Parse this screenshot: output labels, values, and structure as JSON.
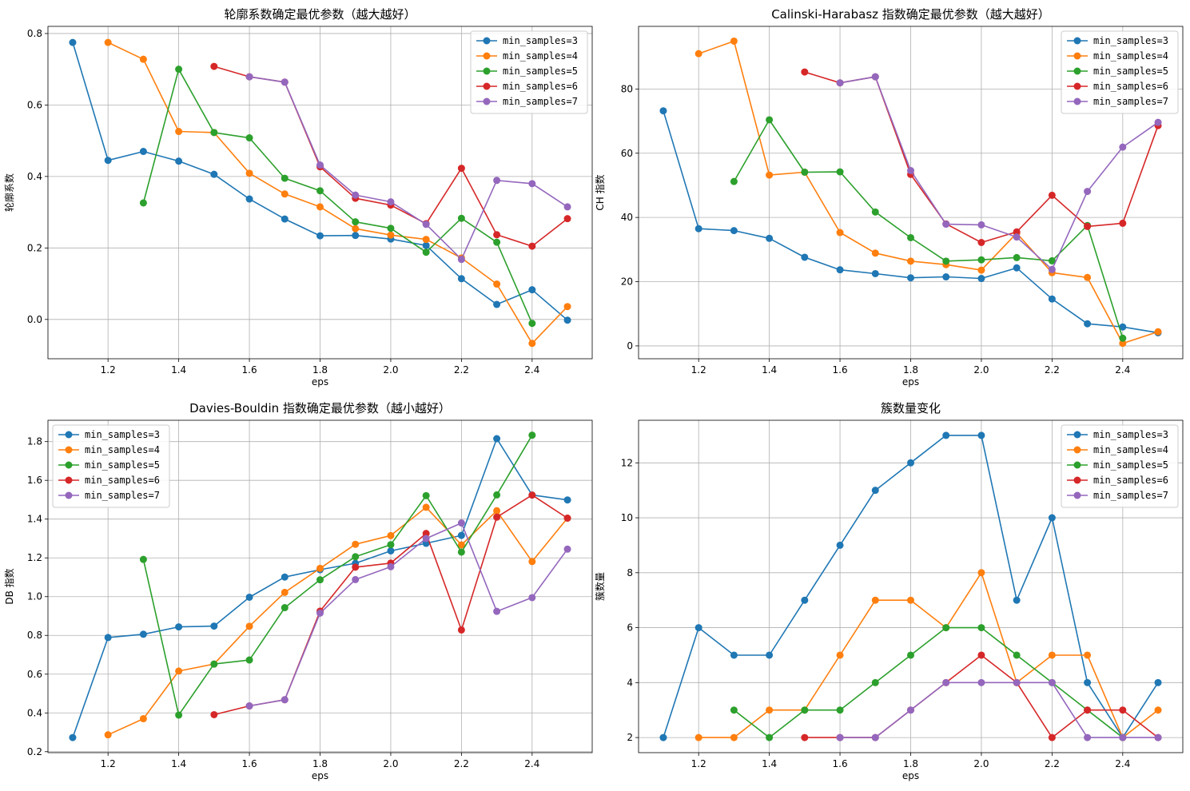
{
  "colors": [
    "#1f77b4",
    "#ff7f0e",
    "#2ca02c",
    "#d62728",
    "#9467bd"
  ],
  "chart_data": [
    {
      "type": "line",
      "title": "轮廓系数确定最优参数（越大越好）",
      "xlabel": "eps",
      "ylabel": "轮廓系数",
      "xlim": [
        1.03,
        2.57
      ],
      "ylim": [
        -0.11,
        0.82
      ],
      "xticks": [
        1.2,
        1.4,
        1.6,
        1.8,
        2.0,
        2.2,
        2.4
      ],
      "xtick_labels": [
        "1.2",
        "1.4",
        "1.6",
        "1.8",
        "2.0",
        "2.2",
        "2.4"
      ],
      "yticks": [
        0.0,
        0.2,
        0.4,
        0.6,
        0.8
      ],
      "ytick_labels": [
        "0.0",
        "0.2",
        "0.4",
        "0.6",
        "0.8"
      ],
      "grid": true,
      "legend": "upper right",
      "series": [
        {
          "name": "min_samples=3",
          "x": [
            1.1,
            1.2,
            1.3,
            1.4,
            1.5,
            1.6,
            1.7,
            1.8,
            1.9,
            2.0,
            2.1,
            2.2,
            2.3,
            2.4,
            2.5
          ],
          "y": [
            0.775,
            0.445,
            0.47,
            0.443,
            0.406,
            0.337,
            0.281,
            0.234,
            0.235,
            0.225,
            0.207,
            0.114,
            0.042,
            0.083,
            -0.002
          ]
        },
        {
          "name": "min_samples=4",
          "x": [
            1.2,
            1.3,
            1.4,
            1.5,
            1.6,
            1.7,
            1.8,
            1.9,
            2.0,
            2.1,
            2.2,
            2.3,
            2.4,
            2.5
          ],
          "y": [
            0.775,
            0.728,
            0.526,
            0.523,
            0.409,
            0.351,
            0.315,
            0.254,
            0.236,
            0.224,
            0.172,
            0.099,
            -0.067,
            0.036
          ]
        },
        {
          "name": "min_samples=5",
          "x": [
            1.3,
            1.4,
            1.5,
            1.6,
            1.7,
            1.8,
            1.9,
            2.0,
            2.1,
            2.2,
            2.3,
            2.4
          ],
          "y": [
            0.326,
            0.7,
            0.523,
            0.508,
            0.395,
            0.36,
            0.273,
            0.255,
            0.188,
            0.283,
            0.216,
            -0.011
          ]
        },
        {
          "name": "min_samples=6",
          "x": [
            1.5,
            1.6,
            1.7,
            1.8,
            1.9,
            2.0,
            2.1,
            2.2,
            2.3,
            2.4,
            2.5
          ],
          "y": [
            0.708,
            0.679,
            0.664,
            0.427,
            0.339,
            0.32,
            0.268,
            0.423,
            0.237,
            0.205,
            0.282
          ]
        },
        {
          "name": "min_samples=7",
          "x": [
            1.6,
            1.7,
            1.8,
            1.9,
            2.0,
            2.1,
            2.2,
            2.3,
            2.4,
            2.5
          ],
          "y": [
            0.679,
            0.664,
            0.432,
            0.348,
            0.329,
            0.266,
            0.168,
            0.389,
            0.38,
            0.315
          ]
        }
      ]
    },
    {
      "type": "line",
      "title": "Calinski-Harabasz 指数确定最优参数（越大越好）",
      "xlabel": "eps",
      "ylabel": "CH 指数",
      "xlim": [
        1.03,
        2.57
      ],
      "ylim": [
        -4.0,
        99.5
      ],
      "xticks": [
        1.2,
        1.4,
        1.6,
        1.8,
        2.0,
        2.2,
        2.4
      ],
      "xtick_labels": [
        "1.2",
        "1.4",
        "1.6",
        "1.8",
        "2.0",
        "2.2",
        "2.4"
      ],
      "yticks": [
        0,
        20,
        40,
        60,
        80
      ],
      "ytick_labels": [
        "0",
        "20",
        "40",
        "60",
        "80"
      ],
      "grid": true,
      "legend": "upper right",
      "series": [
        {
          "name": "min_samples=3",
          "x": [
            1.1,
            1.2,
            1.3,
            1.4,
            1.5,
            1.6,
            1.7,
            1.8,
            1.9,
            2.0,
            2.1,
            2.2,
            2.3,
            2.4,
            2.5
          ],
          "y": [
            73.2,
            36.5,
            35.9,
            33.5,
            27.6,
            23.7,
            22.5,
            21.2,
            21.5,
            21.0,
            24.3,
            14.6,
            6.9,
            5.9,
            4.1
          ]
        },
        {
          "name": "min_samples=4",
          "x": [
            1.2,
            1.3,
            1.4,
            1.5,
            1.6,
            1.7,
            1.8,
            1.9,
            2.0,
            2.1,
            2.2,
            2.3,
            2.4,
            2.5
          ],
          "y": [
            91.0,
            94.9,
            53.2,
            54.1,
            35.3,
            28.9,
            26.4,
            25.3,
            23.6,
            35.1,
            22.8,
            21.3,
            0.8,
            4.4
          ]
        },
        {
          "name": "min_samples=5",
          "x": [
            1.3,
            1.4,
            1.5,
            1.6,
            1.7,
            1.8,
            1.9,
            2.0,
            2.1,
            2.2,
            2.3,
            2.4
          ],
          "y": [
            51.2,
            70.4,
            54.1,
            54.2,
            41.7,
            33.7,
            26.4,
            26.8,
            27.5,
            26.5,
            37.5,
            2.4
          ]
        },
        {
          "name": "min_samples=6",
          "x": [
            1.5,
            1.6,
            1.7,
            1.8,
            1.9,
            2.0,
            2.1,
            2.2,
            2.3,
            2.4,
            2.5
          ],
          "y": [
            85.3,
            81.9,
            83.8,
            53.4,
            38.0,
            32.2,
            35.5,
            46.9,
            37.2,
            38.2,
            68.6
          ]
        },
        {
          "name": "min_samples=7",
          "x": [
            1.6,
            1.7,
            1.8,
            1.9,
            2.0,
            2.1,
            2.2,
            2.3,
            2.4,
            2.5
          ],
          "y": [
            81.9,
            83.8,
            54.6,
            37.9,
            37.7,
            33.9,
            23.8,
            48.1,
            61.9,
            69.6
          ]
        }
      ]
    },
    {
      "type": "line",
      "title": "Davies-Bouldin 指数确定最优参数（越小越好）",
      "xlabel": "eps",
      "ylabel": "DB 指数",
      "xlim": [
        1.03,
        2.57
      ],
      "ylim": [
        0.195,
        1.91
      ],
      "xticks": [
        1.2,
        1.4,
        1.6,
        1.8,
        2.0,
        2.2,
        2.4
      ],
      "xtick_labels": [
        "1.2",
        "1.4",
        "1.6",
        "1.8",
        "2.0",
        "2.2",
        "2.4"
      ],
      "yticks": [
        0.2,
        0.4,
        0.6,
        0.8,
        1.0,
        1.2,
        1.4,
        1.6,
        1.8
      ],
      "ytick_labels": [
        "0.2",
        "0.4",
        "0.6",
        "0.8",
        "1.0",
        "1.2",
        "1.4",
        "1.6",
        "1.8"
      ],
      "grid": true,
      "legend": "upper left",
      "series": [
        {
          "name": "min_samples=3",
          "x": [
            1.1,
            1.2,
            1.3,
            1.4,
            1.5,
            1.6,
            1.7,
            1.8,
            1.9,
            2.0,
            2.1,
            2.2,
            2.3,
            2.4,
            2.5
          ],
          "y": [
            0.273,
            0.789,
            0.806,
            0.844,
            0.848,
            0.997,
            1.101,
            1.139,
            1.172,
            1.236,
            1.275,
            1.316,
            1.815,
            1.524,
            1.499
          ]
        },
        {
          "name": "min_samples=4",
          "x": [
            1.2,
            1.3,
            1.4,
            1.5,
            1.6,
            1.7,
            1.8,
            1.9,
            2.0,
            2.1,
            2.2,
            2.3,
            2.4,
            2.5
          ],
          "y": [
            0.287,
            0.37,
            0.616,
            0.652,
            0.847,
            1.022,
            1.146,
            1.27,
            1.315,
            1.461,
            1.267,
            1.443,
            1.181,
            1.405
          ]
        },
        {
          "name": "min_samples=5",
          "x": [
            1.3,
            1.4,
            1.5,
            1.6,
            1.7,
            1.8,
            1.9,
            2.0,
            2.1,
            2.2,
            2.3,
            2.4
          ],
          "y": [
            1.192,
            0.389,
            0.652,
            0.673,
            0.943,
            1.087,
            1.206,
            1.268,
            1.521,
            1.23,
            1.525,
            1.833
          ]
        },
        {
          "name": "min_samples=6",
          "x": [
            1.5,
            1.6,
            1.7,
            1.8,
            1.9,
            2.0,
            2.1,
            2.2,
            2.3,
            2.4,
            2.5
          ],
          "y": [
            0.391,
            0.436,
            0.468,
            0.925,
            1.152,
            1.173,
            1.326,
            0.828,
            1.41,
            1.524,
            1.405
          ]
        },
        {
          "name": "min_samples=7",
          "x": [
            1.6,
            1.7,
            1.8,
            1.9,
            2.0,
            2.1,
            2.2,
            2.3,
            2.4,
            2.5
          ],
          "y": [
            0.436,
            0.468,
            0.915,
            1.088,
            1.154,
            1.3,
            1.38,
            0.924,
            0.995,
            1.245
          ]
        }
      ]
    },
    {
      "type": "line",
      "title": "簇数量变化",
      "xlabel": "eps",
      "ylabel": "簇数量",
      "xlim": [
        1.03,
        2.57
      ],
      "ylim": [
        1.45,
        13.55
      ],
      "xticks": [
        1.2,
        1.4,
        1.6,
        1.8,
        2.0,
        2.2,
        2.4
      ],
      "xtick_labels": [
        "1.2",
        "1.4",
        "1.6",
        "1.8",
        "2.0",
        "2.2",
        "2.4"
      ],
      "yticks": [
        2,
        4,
        6,
        8,
        10,
        12
      ],
      "ytick_labels": [
        "2",
        "4",
        "6",
        "8",
        "10",
        "12"
      ],
      "grid": true,
      "legend": "upper right",
      "series": [
        {
          "name": "min_samples=3",
          "x": [
            1.1,
            1.2,
            1.3,
            1.4,
            1.5,
            1.6,
            1.7,
            1.8,
            1.9,
            2.0,
            2.1,
            2.2,
            2.3,
            2.4,
            2.5
          ],
          "y": [
            2,
            6,
            5,
            5,
            7,
            9,
            11,
            12,
            13,
            13,
            7,
            10,
            4,
            2,
            4
          ]
        },
        {
          "name": "min_samples=4",
          "x": [
            1.2,
            1.3,
            1.4,
            1.5,
            1.6,
            1.7,
            1.8,
            1.9,
            2.0,
            2.1,
            2.2,
            2.3,
            2.4,
            2.5
          ],
          "y": [
            2,
            2,
            3,
            3,
            5,
            7,
            7,
            6,
            8,
            4,
            5,
            5,
            2,
            3
          ]
        },
        {
          "name": "min_samples=5",
          "x": [
            1.3,
            1.4,
            1.5,
            1.6,
            1.7,
            1.8,
            1.9,
            2.0,
            2.1,
            2.2,
            2.3,
            2.4
          ],
          "y": [
            3,
            2,
            3,
            3,
            4,
            5,
            6,
            6,
            5,
            4,
            3,
            2
          ]
        },
        {
          "name": "min_samples=6",
          "x": [
            1.5,
            1.6,
            1.7,
            1.8,
            1.9,
            2.0,
            2.1,
            2.2,
            2.3,
            2.4,
            2.5
          ],
          "y": [
            2,
            2,
            2,
            3,
            4,
            5,
            4,
            2,
            3,
            3,
            2
          ]
        },
        {
          "name": "min_samples=7",
          "x": [
            1.6,
            1.7,
            1.8,
            1.9,
            2.0,
            2.1,
            2.2,
            2.3,
            2.4,
            2.5
          ],
          "y": [
            2,
            2,
            3,
            4,
            4,
            4,
            4,
            2,
            2,
            2
          ]
        }
      ]
    }
  ]
}
